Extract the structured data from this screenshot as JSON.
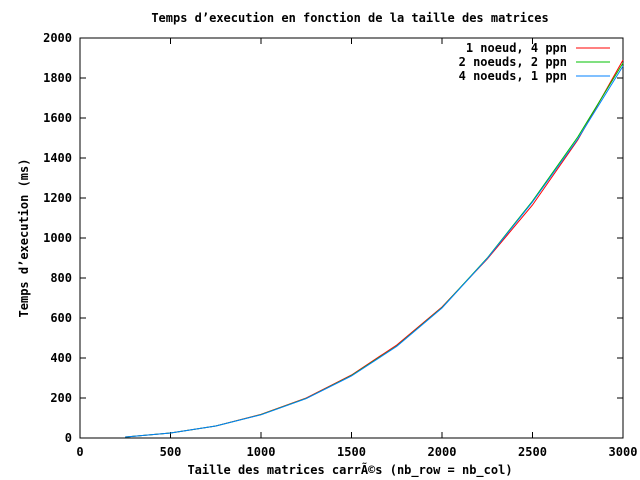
{
  "chart_data": {
    "type": "line",
    "title": "Temps d’execution en fonction de la taille des matrices",
    "xlabel": "Taille des matrices carrÃ©s (nb_row = nb_col)",
    "ylabel": "Temps d’execution (ms)",
    "xlim": [
      0,
      3000
    ],
    "ylim": [
      0,
      2000
    ],
    "xticks": [
      0,
      500,
      1000,
      1500,
      2000,
      2500,
      3000
    ],
    "yticks": [
      0,
      200,
      400,
      600,
      800,
      1000,
      1200,
      1400,
      1600,
      1800,
      2000
    ],
    "grid": false,
    "legend_position": "top-right",
    "x": [
      250,
      500,
      750,
      1000,
      1250,
      1500,
      1750,
      2000,
      2250,
      2500,
      2750,
      3000
    ],
    "series": [
      {
        "name": "1 noeud, 4 ppn",
        "color": "#ff0000",
        "values": [
          5,
          25,
          60,
          118,
          200,
          315,
          465,
          655,
          895,
          1165,
          1490,
          1890
        ]
      },
      {
        "name": "2 noeuds, 2 ppn",
        "color": "#00c000",
        "values": [
          5,
          25,
          60,
          117,
          198,
          312,
          460,
          652,
          900,
          1185,
          1505,
          1875
        ]
      },
      {
        "name": "4 noeuds, 1 ppn",
        "color": "#0080ff",
        "values": [
          5,
          25,
          60,
          116,
          197,
          310,
          458,
          650,
          898,
          1180,
          1495,
          1860
        ]
      }
    ]
  }
}
